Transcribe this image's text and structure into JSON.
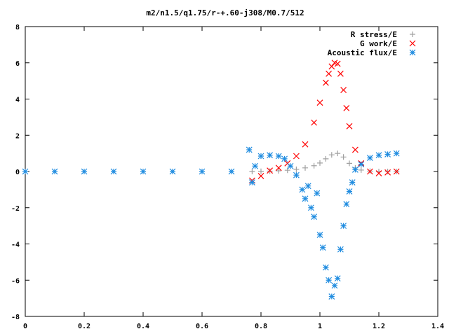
{
  "chart_data": {
    "type": "scatter",
    "title": "m2/n1.5/q1.75/r-+.60-j308/M0.7/512",
    "xlabel": "",
    "ylabel": "",
    "xlim": [
      0,
      1.4
    ],
    "ylim": [
      -8,
      8
    ],
    "xticks": [
      "0",
      "0.2",
      "0.4",
      "0.6",
      "0.8",
      "1",
      "1.2",
      "1.4"
    ],
    "yticks": [
      "-8",
      "-6",
      "-4",
      "-2",
      "0",
      "2",
      "4",
      "6",
      "8"
    ],
    "grid": false,
    "legend_position": "top-right",
    "series": [
      {
        "name": "R stress/E",
        "marker": "plus",
        "color": "#a0a0a0",
        "x": [
          0.77,
          0.8,
          0.83,
          0.86,
          0.89,
          0.92,
          0.95,
          0.98,
          1.0,
          1.02,
          1.04,
          1.06,
          1.08,
          1.1,
          1.12,
          1.14,
          1.17,
          1.2,
          1.23,
          1.26
        ],
        "y": [
          0.0,
          0.01,
          0.02,
          0.04,
          0.07,
          0.12,
          0.2,
          0.32,
          0.47,
          0.7,
          0.92,
          1.0,
          0.8,
          0.45,
          0.2,
          0.08,
          0.02,
          0.0,
          0.0,
          0.0
        ]
      },
      {
        "name": "G work/E",
        "marker": "cross",
        "color": "#ff0000",
        "x": [
          0.77,
          0.8,
          0.83,
          0.86,
          0.89,
          0.92,
          0.95,
          0.98,
          1.0,
          1.02,
          1.03,
          1.04,
          1.05,
          1.06,
          1.07,
          1.08,
          1.09,
          1.1,
          1.12,
          1.14,
          1.17,
          1.2,
          1.23,
          1.26
        ],
        "y": [
          -0.5,
          -0.25,
          0.05,
          0.2,
          0.45,
          0.85,
          1.5,
          2.7,
          3.8,
          4.9,
          5.4,
          5.8,
          6.0,
          5.95,
          5.4,
          4.5,
          3.5,
          2.5,
          1.2,
          0.45,
          0.0,
          -0.1,
          -0.05,
          0.0
        ]
      },
      {
        "name": "Acoustic flux/E",
        "marker": "star",
        "color": "#1f8ce0",
        "x": [
          0.0,
          0.1,
          0.2,
          0.3,
          0.4,
          0.5,
          0.6,
          0.7,
          0.76,
          0.77,
          0.78,
          0.8,
          0.83,
          0.86,
          0.88,
          0.9,
          0.92,
          0.94,
          0.95,
          0.96,
          0.97,
          0.98,
          0.99,
          1.0,
          1.01,
          1.02,
          1.03,
          1.04,
          1.05,
          1.06,
          1.07,
          1.08,
          1.09,
          1.1,
          1.11,
          1.12,
          1.14,
          1.17,
          1.2,
          1.23,
          1.26
        ],
        "y": [
          0.0,
          0.0,
          0.0,
          0.0,
          0.0,
          0.0,
          0.0,
          0.0,
          1.2,
          -0.6,
          0.3,
          0.85,
          0.9,
          0.85,
          0.7,
          0.3,
          -0.2,
          -1.0,
          -1.5,
          -0.8,
          -2.0,
          -2.5,
          -1.2,
          -3.5,
          -4.2,
          -5.3,
          -6.0,
          -6.9,
          -6.3,
          -5.9,
          -4.3,
          -3.0,
          -1.8,
          -1.1,
          -0.6,
          0.1,
          0.4,
          0.75,
          0.9,
          0.95,
          1.0
        ]
      }
    ]
  }
}
